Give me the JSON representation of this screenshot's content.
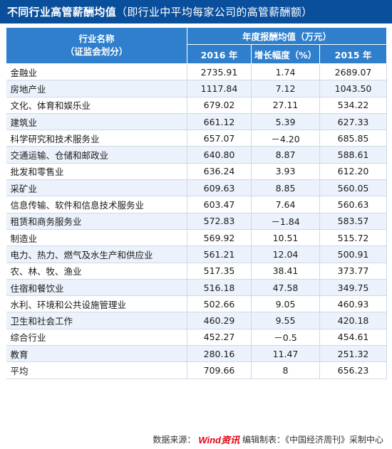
{
  "title": {
    "main": "不同行业高管薪酬均值",
    "sub": "（即行业中平均每家公司的高管薪酬额）"
  },
  "table": {
    "header_industry_line1": "行业名称",
    "header_industry_line2": "（证监会划分）",
    "header_group": "年度报酬均值（万元）",
    "header_2016": "2016 年",
    "header_growth": "增长幅度（%）",
    "header_2015": "2015 年",
    "rows": [
      {
        "name": "金融业",
        "v2016": "2735.91",
        "growth": "1.74",
        "v2015": "2689.07"
      },
      {
        "name": "房地产业",
        "v2016": "1117.84",
        "growth": "7.12",
        "v2015": "1043.50"
      },
      {
        "name": "文化、体育和娱乐业",
        "v2016": "679.02",
        "growth": "27.11",
        "v2015": "534.22"
      },
      {
        "name": "建筑业",
        "v2016": "661.12",
        "growth": "5.39",
        "v2015": "627.33"
      },
      {
        "name": "科学研究和技术服务业",
        "v2016": "657.07",
        "growth": "－4.20",
        "v2015": "685.85"
      },
      {
        "name": "交通运输、仓储和邮政业",
        "v2016": "640.80",
        "growth": "8.87",
        "v2015": "588.61"
      },
      {
        "name": "批发和零售业",
        "v2016": "636.24",
        "growth": "3.93",
        "v2015": "612.20"
      },
      {
        "name": "采矿业",
        "v2016": "609.63",
        "growth": "8.85",
        "v2015": "560.05"
      },
      {
        "name": "信息传输、软件和信息技术服务业",
        "v2016": "603.47",
        "growth": "7.64",
        "v2015": "560.63"
      },
      {
        "name": "租赁和商务服务业",
        "v2016": "572.83",
        "growth": "－1.84",
        "v2015": "583.57"
      },
      {
        "name": "制造业",
        "v2016": "569.92",
        "growth": "10.51",
        "v2015": "515.72"
      },
      {
        "name": "电力、热力、燃气及水生产和供应业",
        "v2016": "561.21",
        "growth": "12.04",
        "v2015": "500.91"
      },
      {
        "name": "农、林、牧、渔业",
        "v2016": "517.35",
        "growth": "38.41",
        "v2015": "373.77"
      },
      {
        "name": "住宿和餐饮业",
        "v2016": "516.18",
        "growth": "47.58",
        "v2015": "349.75"
      },
      {
        "name": "水利、环境和公共设施管理业",
        "v2016": "502.66",
        "growth": "9.05",
        "v2015": "460.93"
      },
      {
        "name": "卫生和社会工作",
        "v2016": "460.29",
        "growth": "9.55",
        "v2015": "420.18"
      },
      {
        "name": "综合行业",
        "v2016": "452.27",
        "growth": "－0.5",
        "v2015": "454.61"
      },
      {
        "name": "教育",
        "v2016": "280.16",
        "growth": "11.47",
        "v2015": "251.32"
      },
      {
        "name": "平均",
        "v2016": "709.66",
        "growth": "8",
        "v2015": "656.23"
      }
    ]
  },
  "footer": {
    "source_prefix": "数据来源：",
    "source_logo": "Wind资讯",
    "editor": "编辑制表：《中国经济周刊》采制中心"
  },
  "colors": {
    "title_bg": "#0a4f9c",
    "header_bg": "#2f7fcd",
    "row_alt_bg": "#ecf2fb"
  }
}
